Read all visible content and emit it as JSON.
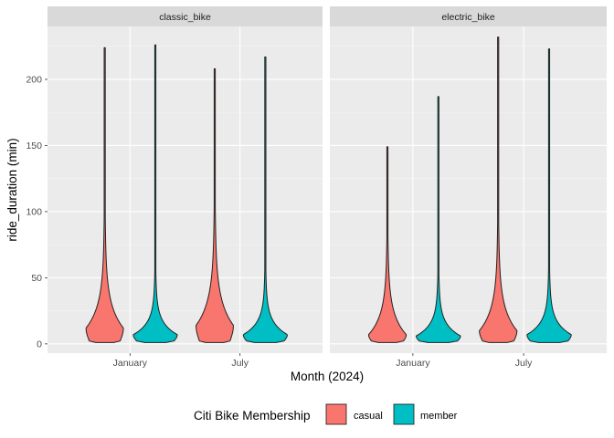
{
  "chart_data": {
    "type": "violin",
    "xlabel": "Month (2024)",
    "ylabel": "ride_duration (min)",
    "ylim": [
      -7,
      240
    ],
    "y_ticks": [
      0,
      50,
      100,
      150,
      200
    ],
    "x_categories": [
      "January",
      "July"
    ],
    "grid": true,
    "legend": {
      "title": "Citi Bike Membership",
      "position": "bottom",
      "entries": [
        {
          "name": "casual",
          "color": "#F8766D"
        },
        {
          "name": "member",
          "color": "#00BFC4"
        }
      ]
    },
    "panels": [
      {
        "name": "classic_bike",
        "violins": [
          {
            "month": "January",
            "group": "casual",
            "min": 1,
            "max": 224,
            "peak": 12,
            "median": 13
          },
          {
            "month": "January",
            "group": "member",
            "min": 1,
            "max": 226,
            "peak": 7,
            "median": 8
          },
          {
            "month": "July",
            "group": "casual",
            "min": 1,
            "max": 208,
            "peak": 14,
            "median": 16
          },
          {
            "month": "July",
            "group": "member",
            "min": 1,
            "max": 217,
            "peak": 7,
            "median": 9
          }
        ]
      },
      {
        "name": "electric_bike",
        "violins": [
          {
            "month": "January",
            "group": "casual",
            "min": 1,
            "max": 149,
            "peak": 7,
            "median": 9
          },
          {
            "month": "January",
            "group": "member",
            "min": 1,
            "max": 187,
            "peak": 6,
            "median": 8
          },
          {
            "month": "July",
            "group": "casual",
            "min": 1,
            "max": 232,
            "peak": 10,
            "median": 12
          },
          {
            "month": "July",
            "group": "member",
            "min": 1,
            "max": 223,
            "peak": 7,
            "median": 9
          }
        ]
      }
    ]
  }
}
